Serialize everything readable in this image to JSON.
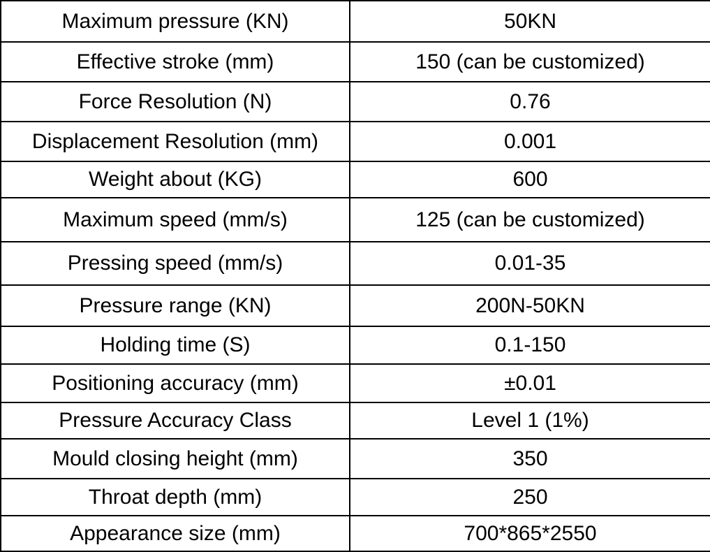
{
  "spec_table": {
    "rows": [
      {
        "parameter": "Maximum pressure (KN)",
        "value": "50KN"
      },
      {
        "parameter": "Effective stroke (mm)",
        "value": "150 (can be customized)"
      },
      {
        "parameter": "Force Resolution (N)",
        "value": "0.76"
      },
      {
        "parameter": "Displacement Resolution (mm)",
        "value": "0.001"
      },
      {
        "parameter": "Weight about (KG)",
        "value": "600"
      },
      {
        "parameter": "Maximum speed (mm/s)",
        "value": "125 (can be customized)"
      },
      {
        "parameter": "Pressing speed (mm/s)",
        "value": "0.01-35"
      },
      {
        "parameter": "Pressure range (KN)",
        "value": "200N-50KN"
      },
      {
        "parameter": "Holding time (S)",
        "value": "0.1-150"
      },
      {
        "parameter": "Positioning accuracy (mm)",
        "value": "±0.01"
      },
      {
        "parameter": "Pressure Accuracy Class",
        "value": "Level 1 (1%)"
      },
      {
        "parameter": "Mould closing height (mm)",
        "value": "350"
      },
      {
        "parameter": "Throat depth (mm)",
        "value": "250"
      },
      {
        "parameter": "Appearance size (mm)",
        "value": "700*865*2550"
      }
    ]
  }
}
